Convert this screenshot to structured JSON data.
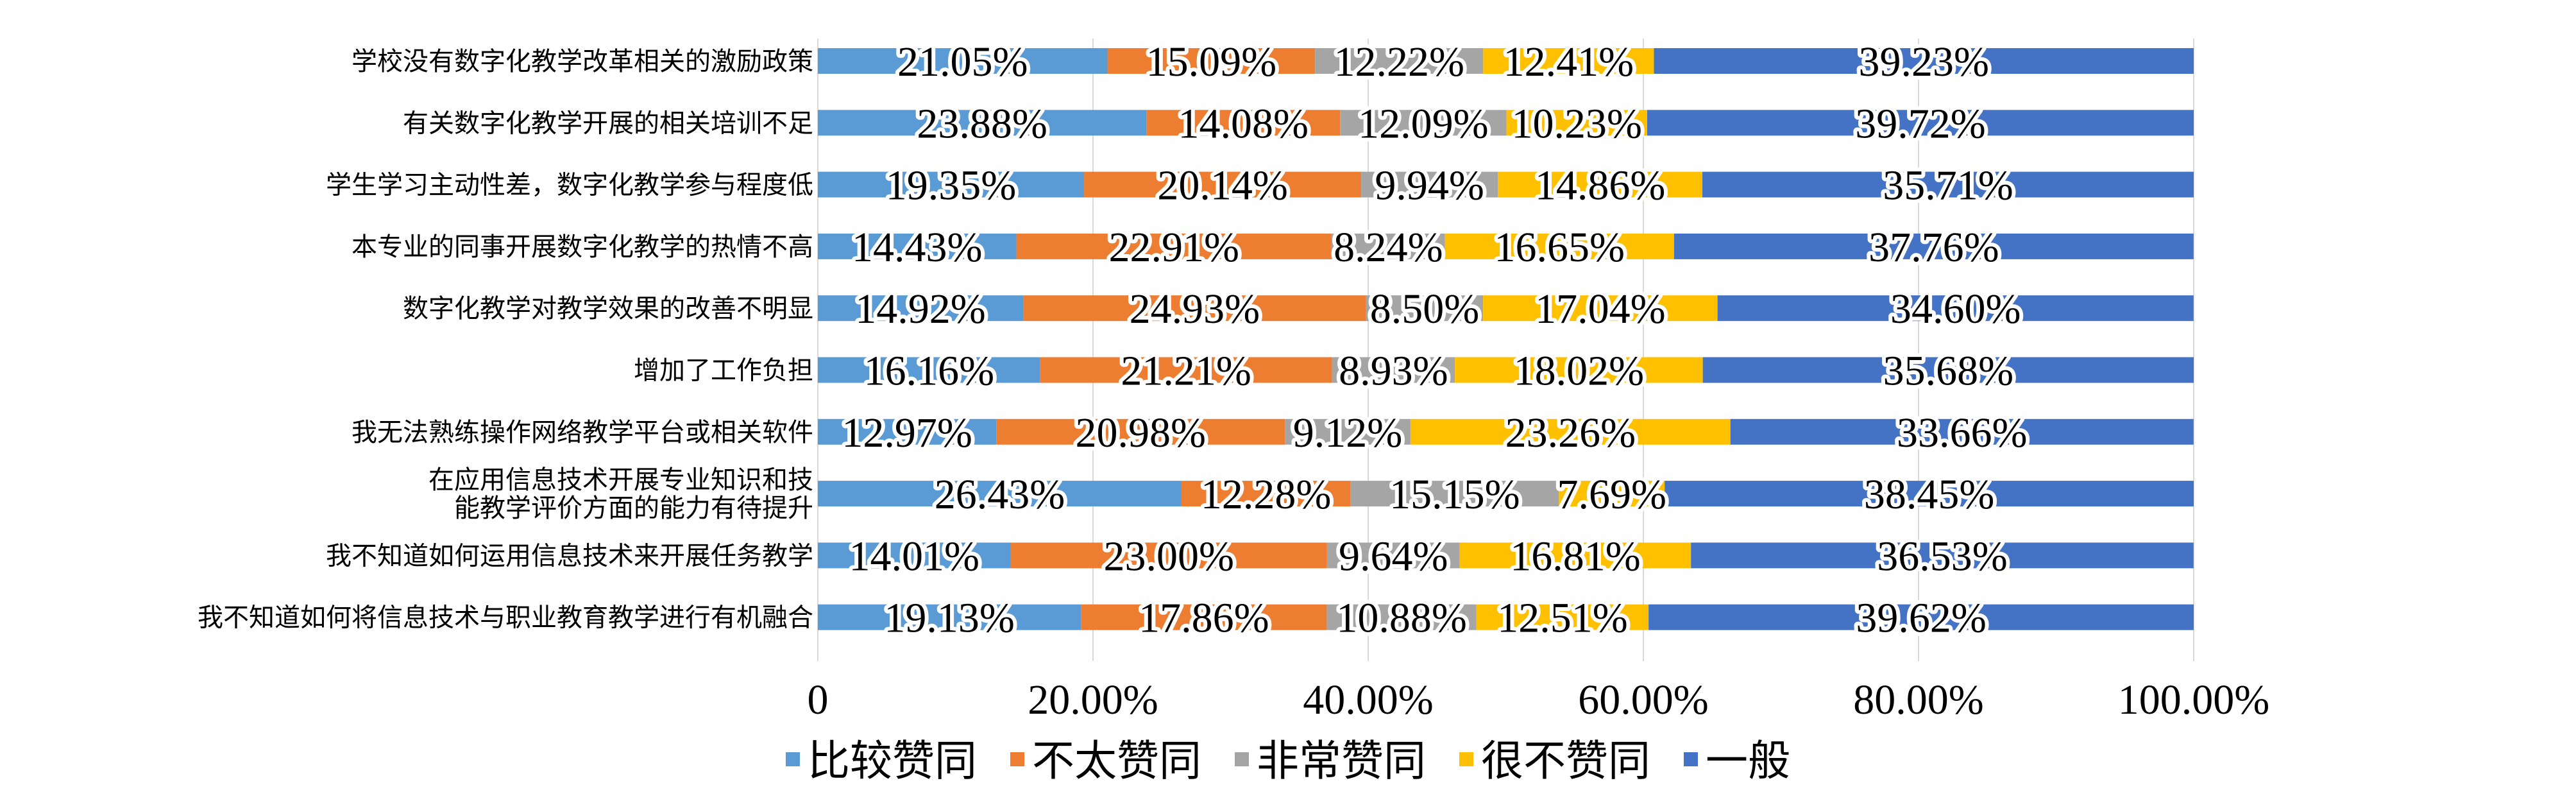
{
  "chart_data": {
    "type": "bar",
    "orientation": "horizontal",
    "stacked": true,
    "categories": [
      "学校没有数字化教学改革相关的激励政策",
      "有关数字化教学开展的相关培训不足",
      "学生学习主动性差，数字化教学参与程度低",
      "本专业的同事开展数字化教学的热情不高",
      "数字化教学对教学效果的改善不明显",
      "增加了工作负担",
      "我无法熟练操作网络教学平台或相关软件",
      "在应用信息技术开展专业知识和技\n能教学评价方面的能力有待提升",
      "我不知道如何运用信息技术来开展任务教学",
      "我不知道如何将信息技术与职业教育教学进行有机融合"
    ],
    "series": [
      {
        "name": "比较赞同",
        "color": "#5B9BD5",
        "values": [
          21.05,
          23.88,
          19.35,
          14.43,
          14.92,
          16.16,
          12.97,
          26.43,
          14.01,
          19.13
        ]
      },
      {
        "name": "不太赞同",
        "color": "#ED7D31",
        "values": [
          15.09,
          14.08,
          20.14,
          22.91,
          24.93,
          21.21,
          20.98,
          12.28,
          23.0,
          17.86
        ]
      },
      {
        "name": "非常赞同",
        "color": "#A5A5A5",
        "values": [
          12.22,
          12.09,
          9.94,
          8.24,
          8.5,
          8.93,
          9.12,
          15.15,
          9.64,
          10.88
        ]
      },
      {
        "name": "很不赞同",
        "color": "#FFC000",
        "values": [
          12.41,
          10.23,
          14.86,
          16.65,
          17.04,
          18.02,
          23.26,
          7.69,
          16.81,
          12.51
        ]
      },
      {
        "name": "一般",
        "color": "#4472C4",
        "values": [
          39.23,
          39.72,
          35.71,
          37.76,
          34.6,
          35.68,
          33.66,
          38.45,
          36.53,
          39.62
        ]
      }
    ],
    "data_labels": [
      [
        "21.05%",
        "15.09%",
        "12.22%",
        "12.41%",
        "39.23%"
      ],
      [
        "23.88%",
        "14.08%",
        "12.09%",
        "10.23%",
        "39.72%"
      ],
      [
        "19.35%",
        "20.14%",
        "9.94%",
        "14.86%",
        "35.71%"
      ],
      [
        "14.43%",
        "22.91%",
        "8.24%",
        "16.65%",
        "37.76%"
      ],
      [
        "14.92%",
        "24.93%",
        "8.50%",
        "17.04%",
        "34.60%"
      ],
      [
        "16.16%",
        "21.21%",
        "8.93%",
        "18.02%",
        "35.68%"
      ],
      [
        "12.97%",
        "20.98%",
        "9.12%",
        "23.26%",
        "33.66%"
      ],
      [
        "26.43%",
        "12.28%",
        "15.15%",
        "7.69%",
        "38.45%"
      ],
      [
        "14.01%",
        "23.00%",
        "9.64%",
        "16.81%",
        "36.53%"
      ],
      [
        "19.13%",
        "17.86%",
        "10.88%",
        "12.51%",
        "39.62%"
      ]
    ],
    "x_ticks": [
      0,
      20,
      40,
      60,
      80,
      100
    ],
    "x_tick_labels": [
      "0",
      "20.00%",
      "40.00%",
      "60.00%",
      "80.00%",
      "100.00%"
    ],
    "xlim": [
      0,
      100
    ],
    "grid": true,
    "legend_position": "bottom"
  }
}
